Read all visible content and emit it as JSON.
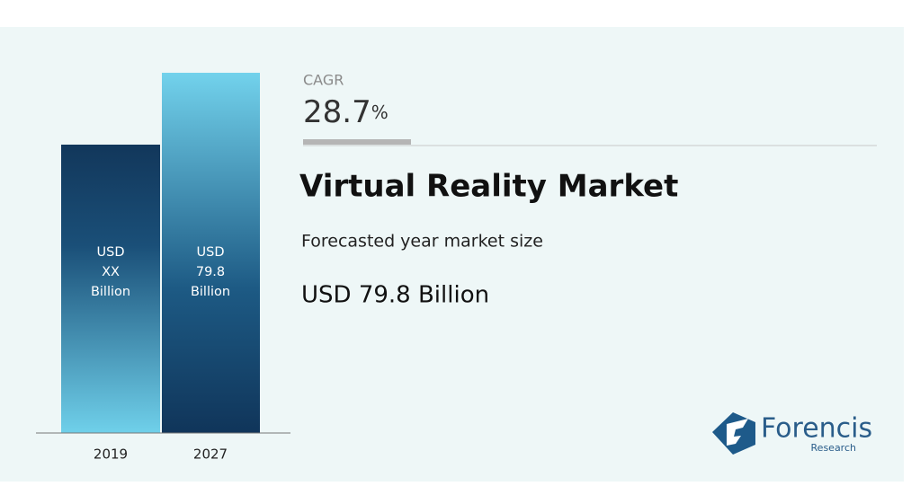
{
  "cagr": {
    "label": "CAGR",
    "value": "28.7",
    "unit": "%"
  },
  "title": "Virtual Reality Market",
  "subtitle": "Forecasted year market size",
  "market_size": "USD 79.8 Billion",
  "bars": [
    {
      "year": "2019",
      "lines": [
        "USD",
        "XX",
        "Billion"
      ]
    },
    {
      "year": "2027",
      "lines": [
        "USD",
        "79.8",
        "Billion"
      ]
    }
  ],
  "logo": {
    "name": "Forencis",
    "tagline": "Research"
  }
}
